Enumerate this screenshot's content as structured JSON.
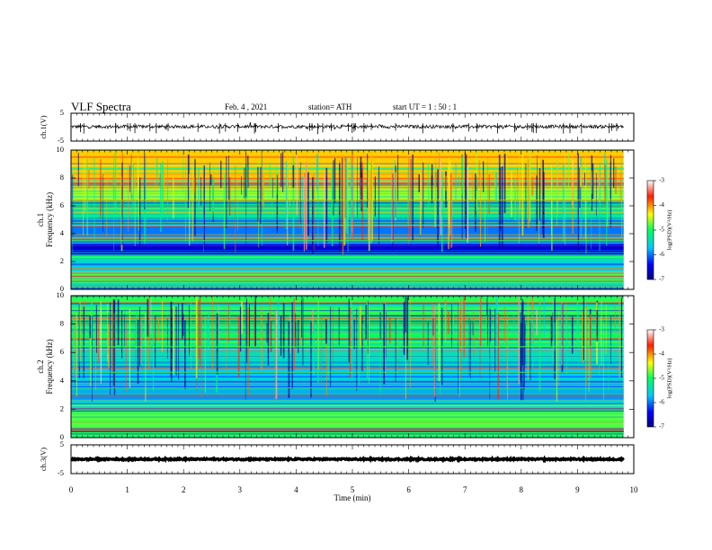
{
  "header": {
    "title": "VLF Spectra",
    "date": "Feb. 4 , 2021",
    "station": "station= ATH",
    "start_ut": "start UT = 1 : 50 : 1"
  },
  "chart_data": [
    {
      "type": "line",
      "panel": "ch1-waveform",
      "ylabel": "ch.1(V)",
      "yticks": [
        "5",
        "-5"
      ],
      "ylim": [
        -5,
        5
      ],
      "xlim": [
        0,
        10
      ],
      "data_end": 9.82,
      "baseline": 0.2,
      "noise_amplitude": 0.6
    },
    {
      "type": "heatmap",
      "panel": "ch1-spectrogram",
      "ylabel": "ch.1 Frequency (kHz)",
      "yticks": [
        "0",
        "2",
        "4",
        "6",
        "8",
        "10"
      ],
      "ylim": [
        0,
        10
      ],
      "xlim": [
        0,
        10
      ],
      "data_end": 9.82,
      "colorbar": {
        "label": "log(PSD)(V²/Hz)",
        "ticks": [
          "-3",
          "-4",
          "-5",
          "-6",
          "-7"
        ],
        "range": [
          -7,
          -3
        ]
      },
      "bands": [
        {
          "from": 0,
          "to": 0.4,
          "level": -5.4
        },
        {
          "from": 0.4,
          "to": 1.2,
          "level": -4.7
        },
        {
          "from": 1.2,
          "to": 2.2,
          "level": -5.6
        },
        {
          "from": 2.2,
          "to": 2.5,
          "level": -5.0
        },
        {
          "from": 2.5,
          "to": 3.3,
          "level": -6.6
        },
        {
          "from": 3.3,
          "to": 5.0,
          "level": -6.0
        },
        {
          "from": 5.0,
          "to": 6.3,
          "level": -5.3
        },
        {
          "from": 6.3,
          "to": 7.6,
          "level": -4.6
        },
        {
          "from": 7.6,
          "to": 10,
          "level": -4.2
        }
      ]
    },
    {
      "type": "heatmap",
      "panel": "ch2-spectrogram",
      "ylabel": "ch.2 Frequency (kHz)",
      "yticks": [
        "0",
        "2",
        "4",
        "6",
        "8",
        "10"
      ],
      "ylim": [
        0,
        10
      ],
      "xlim": [
        0,
        10
      ],
      "data_end": 9.82,
      "colorbar": {
        "label": "log(PSD)(V²/Hz)",
        "ticks": [
          "-3",
          "-4",
          "-5",
          "-6",
          "-7"
        ],
        "range": [
          -7,
          -3
        ]
      },
      "bands": [
        {
          "from": 0,
          "to": 0.6,
          "level": -4.9
        },
        {
          "from": 0.6,
          "to": 2.0,
          "level": -4.8
        },
        {
          "from": 2.0,
          "to": 2.6,
          "level": -5.6
        },
        {
          "from": 2.6,
          "to": 3.6,
          "level": -5.9
        },
        {
          "from": 3.6,
          "to": 5.0,
          "level": -5.7
        },
        {
          "from": 5.0,
          "to": 6.4,
          "level": -5.4
        },
        {
          "from": 6.4,
          "to": 8.0,
          "level": -5.0
        },
        {
          "from": 8.0,
          "to": 10,
          "level": -4.9
        }
      ]
    },
    {
      "type": "line",
      "panel": "ch3-waveform",
      "ylabel": "ch.3(V)",
      "yticks": [
        "5",
        "-5"
      ],
      "ylim": [
        -5,
        5
      ],
      "xlim": [
        0,
        10
      ],
      "data_end": 9.82,
      "baseline": 0.0,
      "noise_amplitude": 0.25,
      "xlabel": "Time (min)",
      "xticks": [
        "0",
        "1",
        "2",
        "3",
        "4",
        "5",
        "6",
        "7",
        "8",
        "9",
        "10"
      ]
    }
  ]
}
